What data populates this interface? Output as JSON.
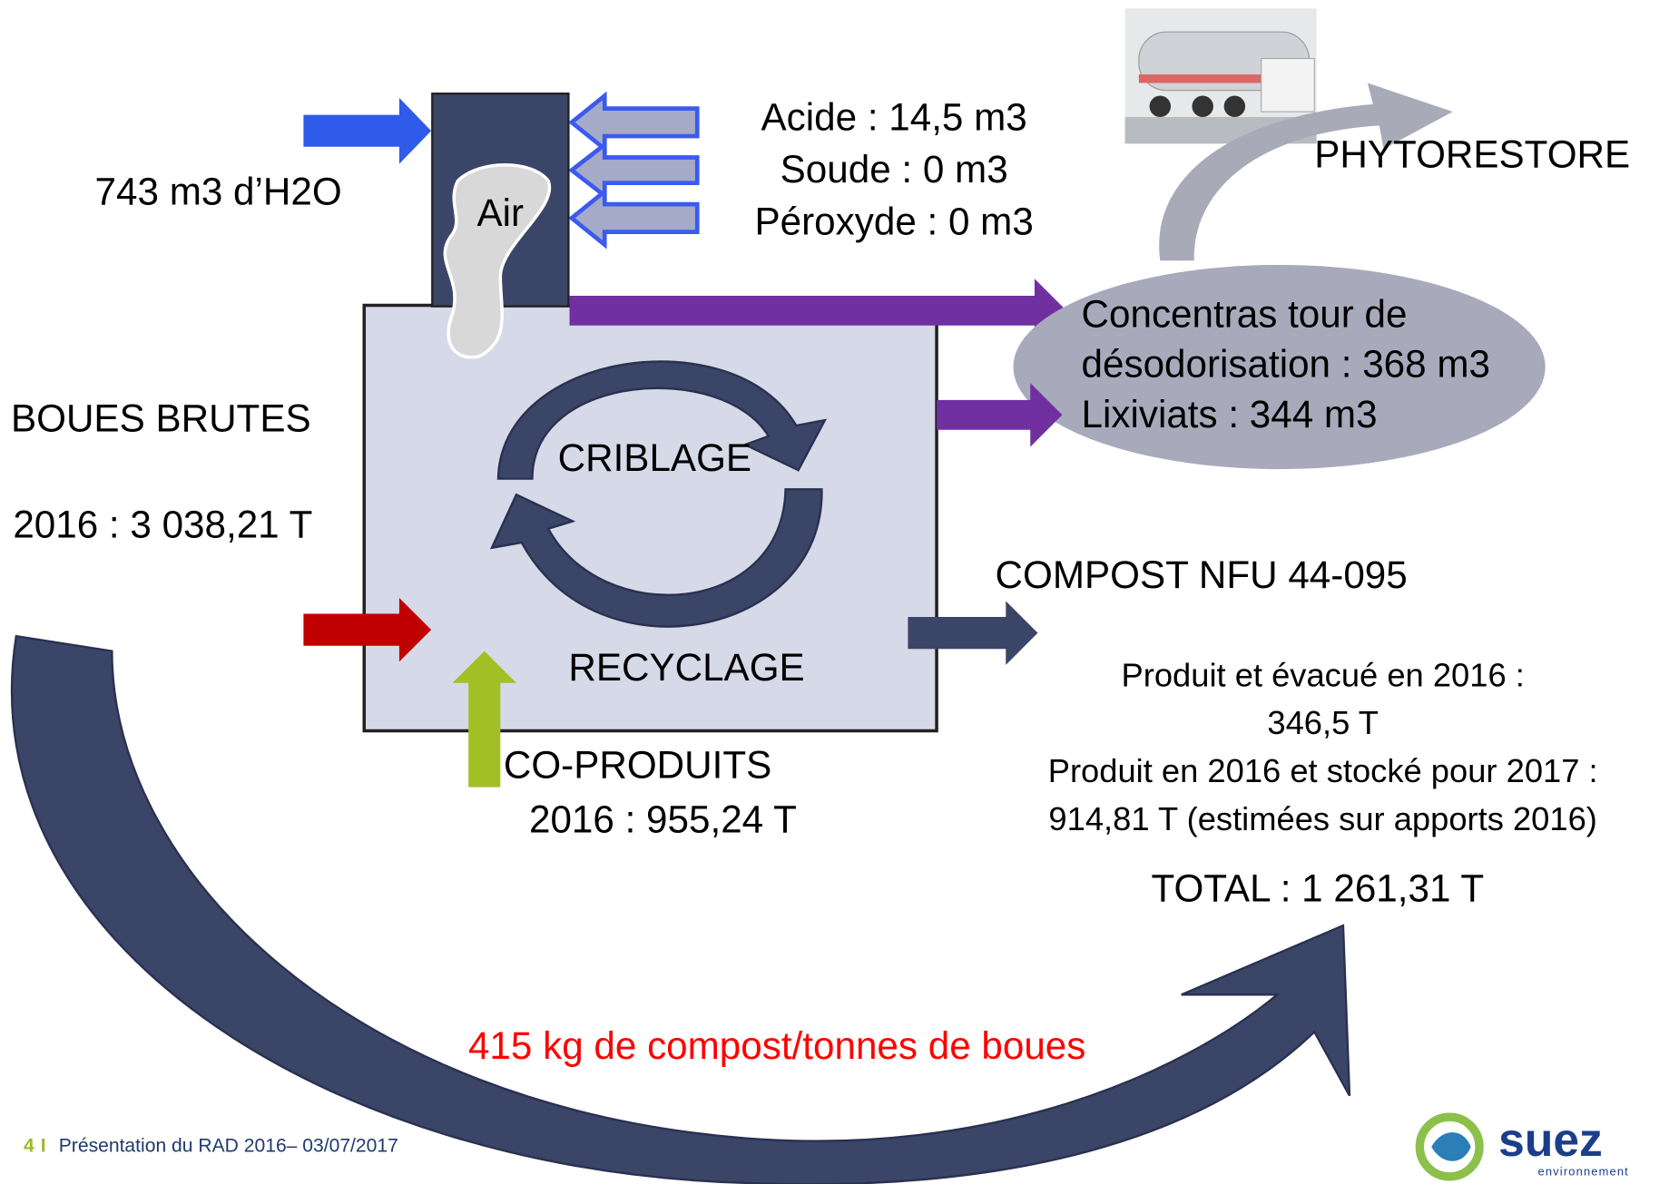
{
  "inputs": {
    "water": "743 m3 d’H2O",
    "air": "Air",
    "reagents": [
      "Acide  : 14,5 m3",
      "Soude : 0 m3",
      "Péroxyde : 0 m3"
    ],
    "sludge": {
      "title": "BOUES BRUTES",
      "amount": "2016 : 3 038,21 T"
    },
    "coproducts": {
      "title": "CO-PRODUITS",
      "amount": "2016 : 955,24 T"
    }
  },
  "process": {
    "top": "CRIBLAGE",
    "bottom": "RECYCLAGE"
  },
  "outputs": {
    "destination": "PHYTORESTORE",
    "liquids": [
      "Concentras tour de",
      "désodorisation : 368 m3",
      "Lixiviats : 344 m3"
    ],
    "compost": {
      "title": "COMPOST NFU 44-095",
      "lines": [
        "Produit et évacué en 2016 :",
        "346,5 T",
        "Produit en 2016 et stocké pour 2017 :",
        "914,81 T (estimées sur apports 2016)"
      ],
      "total": "TOTAL : 1 261,31 T"
    }
  },
  "ratio": "415 kg de compost/tonnes de boues",
  "footer": {
    "page": "4",
    "separator": "I",
    "text": "Présentation du RAD 2016– 03/07/2017"
  },
  "logo": {
    "name": "suez",
    "tagline": "environnement"
  }
}
